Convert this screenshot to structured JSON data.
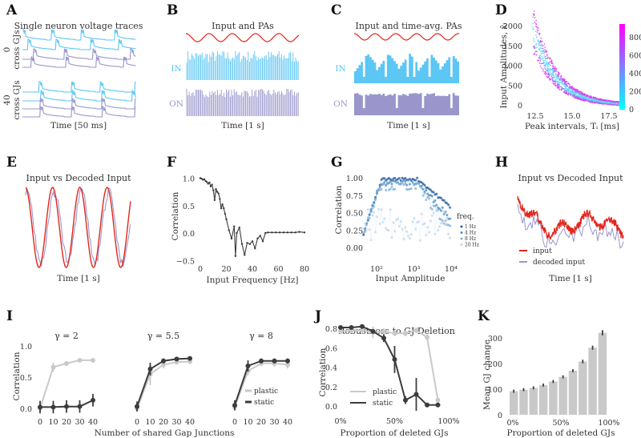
{
  "colors": {
    "cyan": "#5cc6f4",
    "purple": "#9a96cc",
    "red": "#e3261c",
    "dark": "#3c3c3c",
    "light": "#c9c9c9",
    "blue": "#2f6fae"
  },
  "panels": {
    "A": {
      "label": "A",
      "title": "Single neuron voltage traces",
      "group_labels": [
        [
          "0",
          "cross GJs"
        ],
        [
          "40",
          "cross GJs"
        ]
      ],
      "xlabel": "Time [50 ms]"
    },
    "B": {
      "label": "B",
      "title": "Input and PAs",
      "in_label": "IN",
      "on_label": "ON",
      "xlabel": "Time [1 s]"
    },
    "C": {
      "label": "C",
      "title": "Input and time-avg. PAs",
      "in_label": "IN",
      "on_label": "ON",
      "xlabel": "Time [1 s]"
    },
    "D": {
      "label": "D",
      "xlabel": "Peak intervals, Tᵢ [ms]",
      "ylabel": "Input Amplitudes, x̄ᵢ",
      "xticks": [
        "12.5",
        "15.0",
        "17.5"
      ],
      "yticks": [
        "0",
        "500",
        "1000",
        "1500",
        "2000"
      ],
      "cbar_ticks": [
        "0",
        "200",
        "400",
        "600",
        "800"
      ]
    },
    "E": {
      "label": "E",
      "title": "Input vs Decoded Input",
      "xlabel": "Time [1 s]"
    },
    "F": {
      "label": "F",
      "xlabel": "Input Frequency [Hz]",
      "ylabel": "Correlation",
      "xticks": [
        "0",
        "20",
        "40",
        "60",
        "80"
      ],
      "yticks": [
        "−0.5",
        "0.0",
        "0.5",
        "1.0"
      ]
    },
    "G": {
      "label": "G",
      "xlabel": "Input Amplitude",
      "ylabel": "Correlation",
      "xticks": [
        "10²",
        "10³",
        "10⁴"
      ],
      "yticks": [
        "0.00",
        "0.25",
        "0.50",
        "0.75",
        "1.00"
      ],
      "legend_title": "freq.",
      "legend": [
        "1 Hz",
        "4 Hz",
        "8 Hz",
        "20 Hz"
      ]
    },
    "H": {
      "label": "H",
      "title": "Input vs Decoded Input",
      "xlabel": "Time [1 s]",
      "legend": [
        "input",
        "decoded input"
      ]
    },
    "I": {
      "label": "I",
      "titles": [
        "γ = 2",
        "γ = 5.5",
        "γ = 8"
      ],
      "xlabel": "Number of shared Gap Junctions",
      "ylabel": "Correlation",
      "xticks": [
        "0",
        "10",
        "20",
        "30",
        "40"
      ],
      "yticks": [
        "0.0",
        "0.5",
        "1.0"
      ],
      "legend": [
        "plastic",
        "static"
      ]
    },
    "J": {
      "label": "J",
      "title": "Robustness to GJ Deletion",
      "xlabel": "Proportion of deleted GJs",
      "ylabel": "Correlation",
      "xticks": [
        "0%",
        "50%",
        "100%"
      ],
      "yticks": [
        "0.0",
        "0.2",
        "0.4",
        "0.6",
        "0.8"
      ],
      "legend": [
        "plastic",
        "static"
      ]
    },
    "K": {
      "label": "K",
      "xlabel": "Proportion of deleted GJs",
      "ylabel": "Mean GJ change",
      "xticks": [
        "0%",
        "50%",
        "100%"
      ],
      "yticks": [
        "0",
        "100",
        "200",
        "300"
      ]
    }
  },
  "chart_data": [
    {
      "panel": "F",
      "type": "line",
      "x": [
        0,
        1,
        2,
        3,
        4,
        5,
        6,
        7,
        8,
        9,
        10,
        11,
        12,
        13,
        14,
        15,
        16,
        17,
        18,
        19,
        20,
        22,
        24,
        26,
        27,
        28,
        30,
        32,
        34,
        36,
        38,
        40,
        42,
        44,
        46,
        48,
        50,
        52,
        55,
        58,
        61,
        64,
        67,
        70,
        73,
        76,
        80
      ],
      "y": [
        1.0,
        0.99,
        0.97,
        0.98,
        0.95,
        0.93,
        0.9,
        0.92,
        0.85,
        0.88,
        0.78,
        0.6,
        0.8,
        0.75,
        0.72,
        0.62,
        0.45,
        0.52,
        0.45,
        0.35,
        0.25,
        0.05,
        -0.1,
        0.12,
        -0.42,
        0.0,
        0.1,
        -0.2,
        -0.4,
        -0.18,
        -0.2,
        -0.15,
        -0.28,
        -0.1,
        -0.05,
        -0.15,
        0.0,
        0.01,
        0.01,
        0.01,
        0.01,
        0.01,
        0.01,
        0.01,
        0.01,
        0.02,
        0.01
      ],
      "xlim": [
        0,
        80
      ],
      "ylim": [
        -0.5,
        1.0
      ]
    },
    {
      "panel": "I",
      "type": "line",
      "x": [
        0,
        10,
        20,
        30,
        40
      ],
      "subplots": [
        {
          "title": "γ = 2",
          "series": [
            {
              "name": "plastic",
              "values": [
                0.0,
                0.66,
                0.72,
                0.77,
                0.77
              ],
              "err": [
                0.05,
                0.07,
                0.03,
                0.03,
                0.03
              ]
            },
            {
              "name": "static",
              "values": [
                0.02,
                0.02,
                0.03,
                0.03,
                0.13
              ],
              "err": [
                0.1,
                0.1,
                0.1,
                0.1,
                0.1
              ]
            }
          ]
        },
        {
          "title": "γ = 5.5",
          "series": [
            {
              "name": "plastic",
              "values": [
                0.0,
                0.55,
                0.7,
                0.74,
                0.75
              ],
              "err": [
                0.05,
                0.18,
                0.06,
                0.03,
                0.03
              ]
            },
            {
              "name": "static",
              "values": [
                0.03,
                0.63,
                0.76,
                0.79,
                0.8
              ],
              "err": [
                0.08,
                0.1,
                0.04,
                0.03,
                0.03
              ]
            }
          ]
        },
        {
          "title": "γ = 8",
          "series": [
            {
              "name": "plastic",
              "values": [
                0.02,
                0.6,
                0.72,
                0.72,
                0.7
              ],
              "err": [
                0.06,
                0.07,
                0.04,
                0.05,
                0.06
              ]
            },
            {
              "name": "static",
              "values": [
                0.05,
                0.68,
                0.76,
                0.76,
                0.76
              ],
              "err": [
                0.08,
                0.09,
                0.04,
                0.04,
                0.04
              ]
            }
          ]
        }
      ],
      "ylim": [
        0,
        1.0
      ]
    },
    {
      "panel": "J",
      "type": "line",
      "x": [
        0,
        10,
        20,
        30,
        40,
        50,
        60,
        70,
        80,
        90
      ],
      "series": [
        {
          "name": "plastic",
          "values": [
            0.77,
            0.78,
            0.78,
            0.76,
            0.77,
            0.75,
            0.75,
            0.78,
            0.71,
            0.06
          ],
          "err": [
            0.03,
            0.03,
            0.03,
            0.06,
            0.03,
            0.03,
            0.03,
            0.03,
            0.03,
            0.03
          ]
        },
        {
          "name": "static",
          "values": [
            0.81,
            0.81,
            0.82,
            0.77,
            0.7,
            0.48,
            0.06,
            0.12,
            0.01,
            0.01
          ],
          "err": [
            0.02,
            0.02,
            0.02,
            0.02,
            0.04,
            0.14,
            0.04,
            0.17,
            0.01,
            0.01
          ]
        }
      ],
      "ylim": [
        0,
        0.85
      ]
    },
    {
      "panel": "K",
      "type": "bar",
      "x": [
        0,
        10,
        20,
        30,
        40,
        50,
        60,
        70,
        80,
        90
      ],
      "values": [
        92,
        98,
        105,
        116,
        130,
        148,
        172,
        208,
        262,
        320
      ],
      "err": [
        6,
        6,
        6,
        6,
        6,
        6,
        6,
        7,
        8,
        10
      ],
      "ylim": [
        0,
        330
      ]
    }
  ]
}
